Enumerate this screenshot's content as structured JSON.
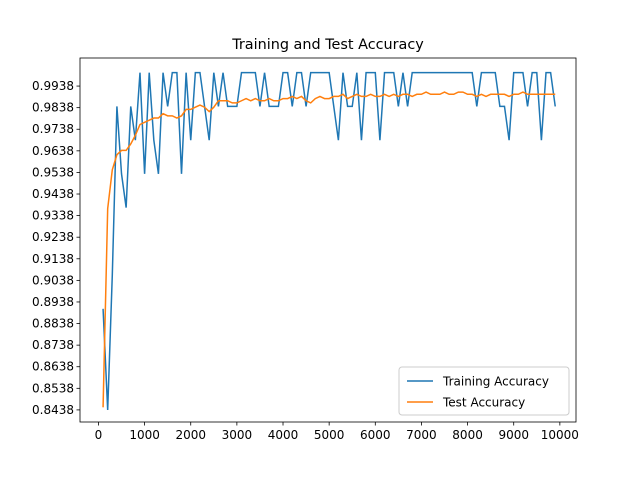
{
  "chart_data": {
    "type": "line",
    "title": "Training and Test Accuracy",
    "x": [
      100,
      200,
      300,
      400,
      500,
      600,
      700,
      800,
      900,
      1000,
      1100,
      1200,
      1300,
      1400,
      1500,
      1600,
      1700,
      1800,
      1900,
      2000,
      2100,
      2200,
      2300,
      2400,
      2500,
      2600,
      2700,
      2800,
      2900,
      3000,
      3100,
      3200,
      3300,
      3400,
      3500,
      3600,
      3700,
      3800,
      3900,
      4000,
      4100,
      4200,
      4300,
      4400,
      4500,
      4600,
      4700,
      4800,
      4900,
      5000,
      5100,
      5200,
      5300,
      5400,
      5500,
      5600,
      5700,
      5800,
      5900,
      6000,
      6100,
      6200,
      6300,
      6400,
      6500,
      6600,
      6700,
      6800,
      6900,
      7000,
      7100,
      7200,
      7300,
      7400,
      7500,
      7600,
      7700,
      7800,
      7900,
      8000,
      8100,
      8200,
      8300,
      8400,
      8500,
      8600,
      8700,
      8800,
      8900,
      9000,
      9100,
      9200,
      9300,
      9400,
      9500,
      9600,
      9700,
      9800,
      9900
    ],
    "series": [
      {
        "name": "Training Accuracy",
        "color": "#1f77b4",
        "values": [
          0.890625,
          0.84375,
          0.90625,
          0.984375,
          0.953125,
          0.9375,
          0.984375,
          0.96875,
          1.0,
          0.953125,
          1.0,
          0.96875,
          0.953125,
          1.0,
          0.984375,
          1.0,
          1.0,
          0.953125,
          1.0,
          0.96875,
          1.0,
          1.0,
          0.984375,
          0.96875,
          1.0,
          0.984375,
          1.0,
          0.984375,
          0.984375,
          0.984375,
          1.0,
          1.0,
          1.0,
          1.0,
          0.984375,
          1.0,
          0.984375,
          0.984375,
          0.984375,
          1.0,
          1.0,
          0.984375,
          1.0,
          1.0,
          0.984375,
          1.0,
          1.0,
          1.0,
          1.0,
          1.0,
          0.984375,
          0.96875,
          1.0,
          0.984375,
          0.984375,
          1.0,
          0.96875,
          1.0,
          1.0,
          1.0,
          0.96875,
          1.0,
          1.0,
          1.0,
          0.984375,
          1.0,
          0.984375,
          1.0,
          1.0,
          1.0,
          1.0,
          1.0,
          1.0,
          1.0,
          1.0,
          1.0,
          1.0,
          1.0,
          1.0,
          1.0,
          1.0,
          0.984375,
          1.0,
          1.0,
          1.0,
          1.0,
          0.984375,
          0.984375,
          0.96875,
          1.0,
          1.0,
          1.0,
          0.984375,
          1.0,
          1.0,
          0.96875,
          1.0,
          1.0,
          0.984375
        ]
      },
      {
        "name": "Test Accuracy",
        "color": "#ff7f0e",
        "values": [
          0.845,
          0.937,
          0.955,
          0.962,
          0.964,
          0.964,
          0.967,
          0.971,
          0.976,
          0.977,
          0.978,
          0.979,
          0.979,
          0.981,
          0.98,
          0.98,
          0.979,
          0.98,
          0.983,
          0.983,
          0.984,
          0.985,
          0.984,
          0.982,
          0.984,
          0.987,
          0.987,
          0.987,
          0.986,
          0.986,
          0.987,
          0.988,
          0.987,
          0.988,
          0.987,
          0.987,
          0.988,
          0.987,
          0.987,
          0.988,
          0.988,
          0.989,
          0.988,
          0.989,
          0.987,
          0.986,
          0.988,
          0.989,
          0.988,
          0.988,
          0.989,
          0.989,
          0.99,
          0.988,
          0.989,
          0.99,
          0.989,
          0.989,
          0.99,
          0.989,
          0.989,
          0.99,
          0.989,
          0.99,
          0.989,
          0.99,
          0.99,
          0.989,
          0.99,
          0.99,
          0.991,
          0.99,
          0.99,
          0.99,
          0.991,
          0.99,
          0.99,
          0.991,
          0.991,
          0.99,
          0.99,
          0.989,
          0.99,
          0.989,
          0.99,
          0.99,
          0.99,
          0.99,
          0.989,
          0.99,
          0.99,
          0.991,
          0.99,
          0.99,
          0.99,
          0.99,
          0.99,
          0.99,
          0.99
        ]
      }
    ],
    "xlim": [
      -400,
      10350
    ],
    "xticks": [
      0,
      1000,
      2000,
      3000,
      4000,
      5000,
      6000,
      7000,
      8000,
      9000,
      10000
    ],
    "ylim": [
      0.8382,
      1.0068
    ],
    "yticks": [
      0.8438,
      0.8538,
      0.8638,
      0.8738,
      0.8838,
      0.8938,
      0.9038,
      0.9138,
      0.9238,
      0.9338,
      0.9438,
      0.9538,
      0.9638,
      0.9738,
      0.9838,
      0.9938
    ],
    "legend": "lower right"
  }
}
